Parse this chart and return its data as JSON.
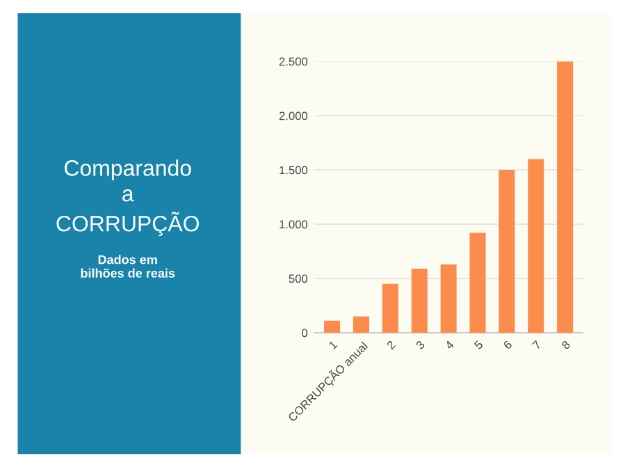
{
  "chart_data": {
    "type": "bar",
    "title": "Comparando\na\nCORRUPÇÃO",
    "subtitle": "Dados em\nbilhões de reais",
    "categories": [
      "1",
      "CORRUPÇÃO anual",
      "2",
      "3",
      "4",
      "5",
      "6",
      "7",
      "8"
    ],
    "values": [
      110,
      150,
      450,
      590,
      630,
      920,
      1500,
      1600,
      2500
    ],
    "color": "#fb8c4c",
    "ylim": [
      0,
      2500
    ],
    "yticks": [
      {
        "value": 0,
        "label": "0"
      },
      {
        "value": 500,
        "label": "500"
      },
      {
        "value": 1000,
        "label": "1.000"
      },
      {
        "value": 1500,
        "label": "1.500"
      },
      {
        "value": 2000,
        "label": "2.000"
      },
      {
        "value": 2500,
        "label": "2.500"
      }
    ],
    "grid": "y"
  }
}
